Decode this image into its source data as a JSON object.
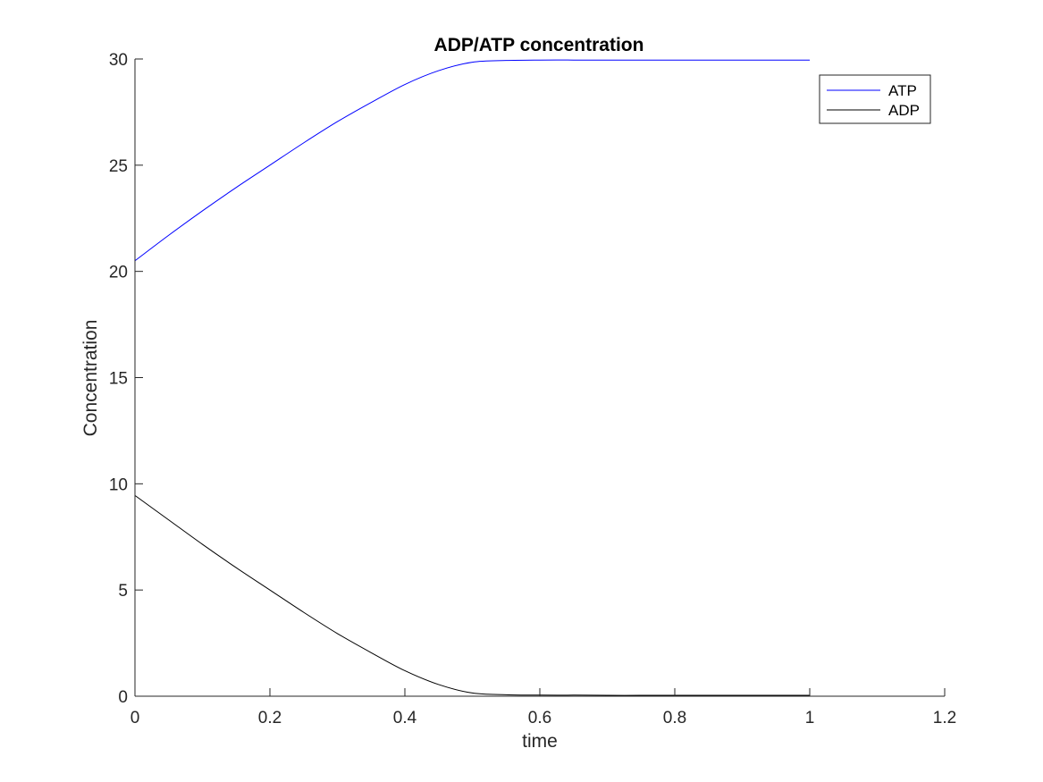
{
  "chart_data": {
    "type": "line",
    "title": "ADP/ATP concentration",
    "xlabel": "time",
    "ylabel": "Concentration",
    "xlim": [
      0,
      1.2
    ],
    "ylim": [
      0,
      30
    ],
    "xticks": [
      0,
      0.2,
      0.4,
      0.6,
      0.8,
      1,
      1.2
    ],
    "xtick_labels": [
      "0",
      "0.2",
      "0.4",
      "0.6",
      "0.8",
      "1",
      "1.2"
    ],
    "yticks": [
      0,
      5,
      10,
      15,
      20,
      25,
      30
    ],
    "ytick_labels": [
      "0",
      "5",
      "10",
      "15",
      "20",
      "25",
      "30"
    ],
    "grid": false,
    "legend_position": "top-right",
    "x": [
      0,
      0.05,
      0.1,
      0.15,
      0.2,
      0.25,
      0.3,
      0.35,
      0.4,
      0.45,
      0.5,
      0.55,
      0.6,
      0.65,
      0.7,
      0.75,
      0.8,
      0.85,
      0.9,
      0.95,
      1.0
    ],
    "series": [
      {
        "name": "ATP",
        "color": "#0000ff",
        "values": [
          20.5,
          21.7,
          22.85,
          23.95,
          25.0,
          26.05,
          27.05,
          27.95,
          28.8,
          29.45,
          29.85,
          29.93,
          29.95,
          29.95,
          29.95,
          29.95,
          29.95,
          29.95,
          29.95,
          29.95,
          29.95
        ]
      },
      {
        "name": "ADP",
        "color": "#000000",
        "values": [
          9.45,
          8.3,
          7.15,
          6.05,
          5.0,
          3.95,
          2.95,
          2.05,
          1.2,
          0.55,
          0.15,
          0.07,
          0.05,
          0.05,
          0.04,
          0.04,
          0.04,
          0.04,
          0.04,
          0.04,
          0.04
        ]
      }
    ]
  }
}
